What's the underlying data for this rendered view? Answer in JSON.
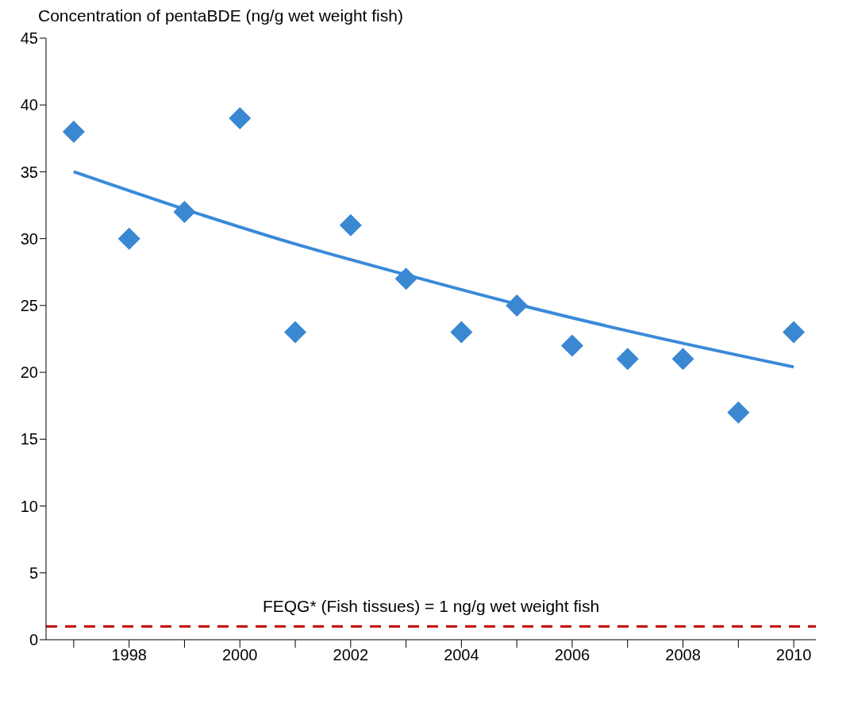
{
  "chart_data": {
    "type": "scatter",
    "ylabel": "Concentration of pentaBDE (ng/g wet weight fish)",
    "x": [
      1997,
      1998,
      1999,
      2000,
      2001,
      2002,
      2003,
      2004,
      2005,
      2006,
      2007,
      2008,
      2009,
      2010
    ],
    "series": [
      {
        "color": "#3a87d2",
        "marker": "diamond",
        "values": [
          38,
          30,
          32,
          39,
          23,
          31,
          27,
          23,
          25,
          22,
          21,
          21,
          17,
          23
        ]
      },
      {
        "type": "line",
        "color": "#3a8ad8",
        "line_style": "solid",
        "x": [
          1997,
          1999,
          2001,
          2003,
          2005,
          2007,
          2010
        ],
        "values": [
          35,
          32.2,
          29.6,
          27.3,
          25.1,
          23.1,
          20.4
        ]
      }
    ],
    "xlim": [
      1996.5,
      2010.4
    ],
    "ylim": [
      0,
      45
    ],
    "xticks": [
      {
        "value": 1997,
        "label": null
      },
      1998,
      {
        "value": 1999,
        "label": null
      },
      2000,
      {
        "value": 2001,
        "label": null
      },
      2002,
      {
        "value": 2003,
        "label": null
      },
      2004,
      {
        "value": 2005,
        "label": null
      },
      2006,
      {
        "value": 2007,
        "label": null
      },
      2008,
      {
        "value": 2009,
        "label": null
      },
      2010
    ],
    "yticks": [
      0,
      5,
      10,
      15,
      20,
      25,
      30,
      35,
      40,
      45
    ],
    "ref_lines": [
      {
        "axis": "y",
        "value": 1,
        "label": "FEQG* (Fish tissues) = 1 ng/g wet weight fish",
        "color": "#c00000",
        "line_style": "dashed"
      }
    ]
  }
}
